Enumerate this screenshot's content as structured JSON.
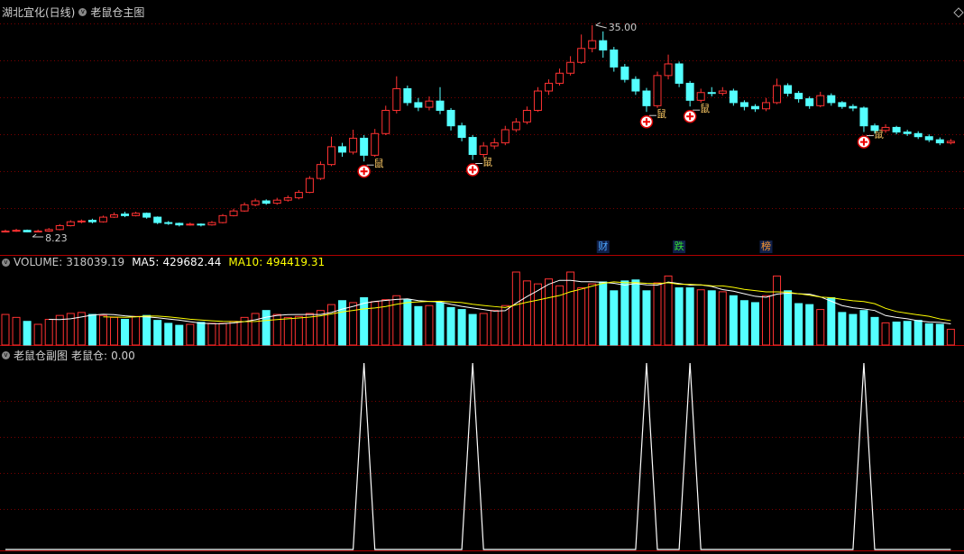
{
  "chart_data": [
    {
      "type": "candlestick",
      "title": "湖北宜化(日线)",
      "subtitle": "老鼠仓主图",
      "up_color": "#ff3232",
      "down_color": "#54ffff",
      "open": [
        8.3,
        8.4,
        8.5,
        8.3,
        8.4,
        8.6,
        9.1,
        9.6,
        9.8,
        9.6,
        10.2,
        10.6,
        10.4,
        10.7,
        10.2,
        9.5,
        9.4,
        9.2,
        9.3,
        9.2,
        9.5,
        10.4,
        11.0,
        11.8,
        12.3,
        12.0,
        12.4,
        12.7,
        13.4,
        15.2,
        17.0,
        19.3,
        18.6,
        20.4,
        18.2,
        21.0,
        24.0,
        26.8,
        25.0,
        24.4,
        25.2,
        24.0,
        22.0,
        20.5,
        18.3,
        19.4,
        19.8,
        21.5,
        22.5,
        24.0,
        26.5,
        27.5,
        28.8,
        30.2,
        32.0,
        33.0,
        31.8,
        29.6,
        28.0,
        26.5,
        24.6,
        28.5,
        30.0,
        27.5,
        25.3,
        26.3,
        26.2,
        26.5,
        25.0,
        24.5,
        24.2,
        25.0,
        27.2,
        26.2,
        25.5,
        24.6,
        25.9,
        25.0,
        24.5,
        24.3,
        22.0,
        21.4,
        21.8,
        21.2,
        21.0,
        20.6,
        20.2,
        19.8
      ],
      "high": [
        8.6,
        8.7,
        8.6,
        8.6,
        8.8,
        9.3,
        9.8,
        9.9,
        10.0,
        10.4,
        10.8,
        10.9,
        10.9,
        10.8,
        10.3,
        9.7,
        9.5,
        9.5,
        9.4,
        9.7,
        10.6,
        11.3,
        12.1,
        12.6,
        12.5,
        12.7,
        13.0,
        13.7,
        15.5,
        17.4,
        20.6,
        19.8,
        21.5,
        20.8,
        21.6,
        24.6,
        28.4,
        27.2,
        25.6,
        25.8,
        27.0,
        24.3,
        22.4,
        20.8,
        19.9,
        20.4,
        22.0,
        23.0,
        24.5,
        27.0,
        28.0,
        29.4,
        31.0,
        33.8,
        35.0,
        34.2,
        32.2,
        30.0,
        28.4,
        26.9,
        29.0,
        31.2,
        30.3,
        27.8,
        26.8,
        27.0,
        27.0,
        26.8,
        25.3,
        24.8,
        25.6,
        28.1,
        27.5,
        26.5,
        25.8,
        26.4,
        26.2,
        25.2,
        24.8,
        24.5,
        22.3,
        22.2,
        22.0,
        21.5,
        21.3,
        20.9,
        20.5,
        20.3
      ],
      "low": [
        8.25,
        8.3,
        8.23,
        8.25,
        8.3,
        8.5,
        9.0,
        9.4,
        9.4,
        9.5,
        10.1,
        10.2,
        10.3,
        10.0,
        9.3,
        9.2,
        9.0,
        9.1,
        9.0,
        9.1,
        9.4,
        10.3,
        10.9,
        11.6,
        11.8,
        11.8,
        12.2,
        12.5,
        13.3,
        15.0,
        16.8,
        18.0,
        18.3,
        17.4,
        18.0,
        20.8,
        23.6,
        24.6,
        23.9,
        24.0,
        23.5,
        21.4,
        20.0,
        17.6,
        17.9,
        19.0,
        19.5,
        21.2,
        22.2,
        23.8,
        26.0,
        27.2,
        28.5,
        30.0,
        31.5,
        30.8,
        29.0,
        27.6,
        26.0,
        23.8,
        24.3,
        28.0,
        27.0,
        24.5,
        25.0,
        25.8,
        25.9,
        24.6,
        24.0,
        23.8,
        23.9,
        24.8,
        25.8,
        25.0,
        24.2,
        24.4,
        24.6,
        24.2,
        23.9,
        21.2,
        21.0,
        21.1,
        20.9,
        20.7,
        20.3,
        19.9,
        19.5,
        19.6
      ],
      "close": [
        8.4,
        8.5,
        8.3,
        8.4,
        8.6,
        9.1,
        9.6,
        9.7,
        9.6,
        10.2,
        10.5,
        10.4,
        10.7,
        10.2,
        9.5,
        9.4,
        9.2,
        9.3,
        9.2,
        9.5,
        10.4,
        11.0,
        11.8,
        12.3,
        12.0,
        12.4,
        12.7,
        13.4,
        15.2,
        17.0,
        19.3,
        18.6,
        20.4,
        18.2,
        21.0,
        24.0,
        26.8,
        25.0,
        24.4,
        25.2,
        24.0,
        22.0,
        20.5,
        18.3,
        19.4,
        19.8,
        21.5,
        22.5,
        24.0,
        26.5,
        27.5,
        28.8,
        30.2,
        32.0,
        33.0,
        31.8,
        29.6,
        28.0,
        26.5,
        24.6,
        28.5,
        30.0,
        27.5,
        25.3,
        26.3,
        26.2,
        26.5,
        25.0,
        24.5,
        24.2,
        25.0,
        27.2,
        26.2,
        25.5,
        24.6,
        25.9,
        25.0,
        24.5,
        24.3,
        22.0,
        21.4,
        21.8,
        21.2,
        21.0,
        20.6,
        20.2,
        19.8,
        20.0
      ],
      "high_label": {
        "value": 35,
        "label": "35.00"
      },
      "low_label": {
        "value": 8.23,
        "label": "8.23"
      },
      "signal_text": "鼠",
      "events": [
        {
          "label": "财",
          "candle": 55,
          "color": "#4da6ff"
        },
        {
          "label": "跌",
          "candle": 62,
          "color": "#33dd33"
        },
        {
          "label": "榜",
          "candle": 70,
          "color": "#ff9933"
        }
      ]
    },
    {
      "type": "bar",
      "up_color": "#ff3232",
      "down_color": "#54ffff",
      "series": [
        {
          "name": "VOLUME:",
          "color": "#c8c8c8",
          "last_value_label": "318039.19",
          "values": [
            620000,
            560000,
            480000,
            420000,
            520000,
            600000,
            640000,
            660000,
            620000,
            600000,
            560000,
            520000,
            580000,
            600000,
            500000,
            440000,
            400000,
            420000,
            460000,
            440000,
            440000,
            480000,
            560000,
            640000,
            700000,
            620000,
            560000,
            580000,
            640000,
            700000,
            820000,
            900000,
            860000,
            960000,
            880000,
            920000,
            1000000,
            920000,
            780000,
            800000,
            860000,
            760000,
            720000,
            620000,
            640000,
            700000,
            800000,
            1480000,
            1300000,
            1240000,
            1340000,
            1200000,
            1480000,
            1160000,
            1240000,
            1280000,
            1100000,
            1300000,
            1320000,
            1100000,
            1260000,
            1400000,
            1160000,
            1160000,
            1120000,
            1100000,
            1080000,
            1000000,
            900000,
            860000,
            1000000,
            1400000,
            1100000,
            840000,
            820000,
            720000,
            960000,
            660000,
            620000,
            700000,
            560000,
            450000,
            465770,
            480000,
            500000,
            430000,
            420400,
            318039.19
          ]
        },
        {
          "name": "MA5:",
          "color": "#ffffff",
          "last_value_label": "429682.44",
          "values": [
            null,
            null,
            null,
            null,
            520000,
            516000,
            532000,
            568000,
            608000,
            624000,
            616000,
            592000,
            576000,
            572000,
            552000,
            528000,
            504000,
            472000,
            444000,
            432000,
            432000,
            448000,
            476000,
            512000,
            564000,
            600000,
            616000,
            620000,
            620000,
            620000,
            660000,
            728000,
            784000,
            848000,
            884000,
            904000,
            924000,
            936000,
            900000,
            884000,
            872000,
            824000,
            784000,
            752000,
            720000,
            688000,
            696000,
            848000,
            984000,
            1104000,
            1232000,
            1312000,
            1312000,
            1284000,
            1284000,
            1272000,
            1252000,
            1216000,
            1248000,
            1220000,
            1216000,
            1276000,
            1248000,
            1216000,
            1220000,
            1188000,
            1124000,
            1092000,
            1040000,
            988000,
            968000,
            1032000,
            1052000,
            1040000,
            1032000,
            976000,
            888000,
            800000,
            756000,
            732000,
            700000,
            598000,
            559154,
            531154,
            491154,
            465154,
            459234,
            429682.44
          ]
        },
        {
          "name": "MA10:",
          "color": "#ffff00",
          "last_value_label": "494419.31",
          "values": [
            null,
            null,
            null,
            null,
            null,
            null,
            null,
            null,
            null,
            572000,
            566000,
            562000,
            572000,
            590000,
            588000,
            572000,
            548000,
            524000,
            508000,
            492000,
            480000,
            476000,
            474000,
            478000,
            498000,
            516000,
            532000,
            548000,
            566000,
            592000,
            630000,
            672000,
            702000,
            734000,
            752000,
            782000,
            826000,
            860000,
            874000,
            884000,
            888000,
            874000,
            860000,
            826000,
            802000,
            780000,
            760000,
            816000,
            868000,
            912000,
            960000,
            1004000,
            1080000,
            1134000,
            1194000,
            1252000,
            1282000,
            1264000,
            1266000,
            1252000,
            1244000,
            1264000,
            1232000,
            1232000,
            1220000,
            1202000,
            1200000,
            1170000,
            1128000,
            1104000,
            1078000,
            1078000,
            1072000,
            1040000,
            1010000,
            972000,
            960000,
            926000,
            898000,
            882000,
            838000,
            743000,
            679577,
            643577,
            611577,
            582577,
            528617,
            494419.31
          ]
        }
      ]
    },
    {
      "type": "line",
      "title": "老鼠仓副图",
      "name": "老鼠仓:",
      "last_value_label": "0.00",
      "color": "#ffffff",
      "values": [
        0,
        0,
        0,
        0,
        0,
        0,
        0,
        0,
        0,
        0,
        0,
        0,
        0,
        0,
        0,
        0,
        0,
        0,
        0,
        0,
        0,
        0,
        0,
        0,
        0,
        0,
        0,
        0,
        0,
        0,
        0,
        0,
        0,
        1,
        0,
        0,
        0,
        0,
        0,
        0,
        0,
        0,
        0,
        1,
        0,
        0,
        0,
        0,
        0,
        0,
        0,
        0,
        0,
        0,
        0,
        0,
        0,
        0,
        0,
        1,
        0,
        0,
        0,
        1,
        0,
        0,
        0,
        0,
        0,
        0,
        0,
        0,
        0,
        0,
        0,
        0,
        0,
        0,
        0,
        1,
        0,
        0,
        0,
        0,
        0,
        0,
        0,
        0
      ]
    }
  ]
}
